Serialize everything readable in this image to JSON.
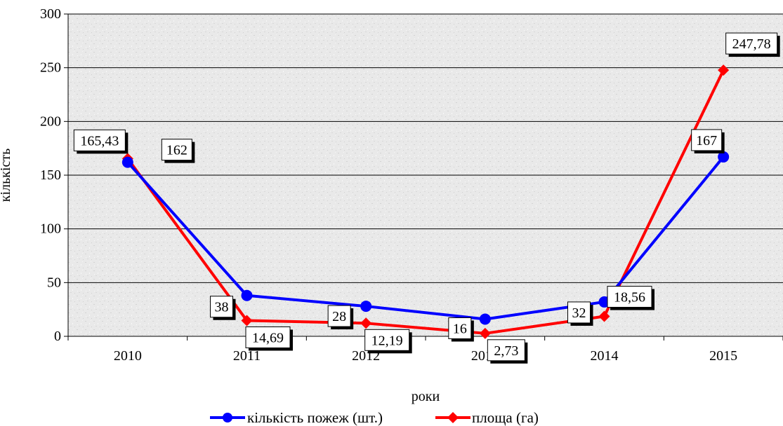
{
  "chart_data": {
    "type": "line",
    "categories": [
      "2010",
      "2011",
      "2012",
      "2013",
      "2014",
      "2015"
    ],
    "xlabel": "роки",
    "ylabel": "кількість",
    "ylim": [
      0,
      300
    ],
    "yticks": [
      0,
      50,
      100,
      150,
      200,
      250,
      300
    ],
    "grid": true,
    "legend_position": "bottom",
    "series": [
      {
        "name": "кількість пожеж (шт.)",
        "color": "#0000ff",
        "marker": "circle",
        "values": [
          162,
          38,
          28,
          16,
          32,
          167
        ],
        "labels": [
          "162",
          "38",
          "28",
          "16",
          "32",
          "167"
        ]
      },
      {
        "name": "площа (га)",
        "color": "#ff0000",
        "marker": "diamond",
        "values": [
          165.43,
          14.69,
          12.19,
          2.73,
          18.56,
          247.78
        ],
        "labels": [
          "165,43",
          "14,69",
          "12,19",
          "2,73",
          "18,56",
          "247,78"
        ]
      }
    ]
  }
}
